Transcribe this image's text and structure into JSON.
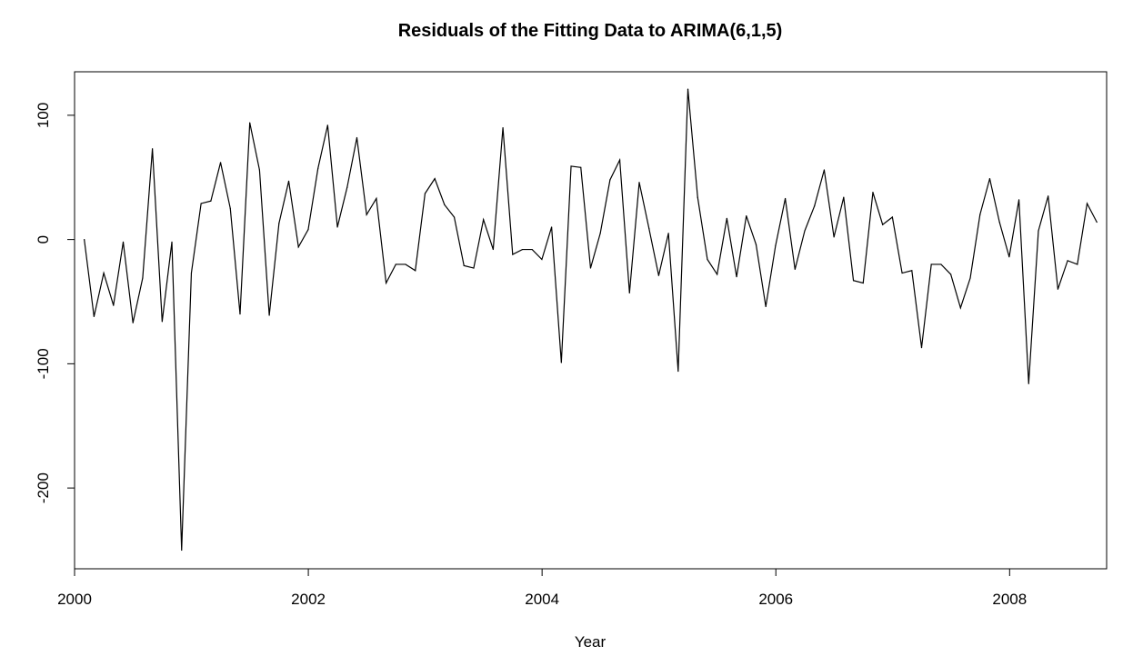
{
  "chart_data": {
    "type": "line",
    "title": "Residuals of the Fitting Data to ARIMA(6,1,5)",
    "xlabel": "Year",
    "ylabel": "",
    "xlim": [
      2000,
      2008.83
    ],
    "ylim": [
      -265,
      135
    ],
    "x_ticks": [
      2000,
      2002,
      2004,
      2006,
      2008
    ],
    "x_tick_labels": [
      "2000",
      "2002",
      "2004",
      "2006",
      "2008"
    ],
    "y_ticks": [
      100,
      0,
      -100,
      -200
    ],
    "y_tick_labels": [
      "100",
      "0",
      "-100",
      "-200"
    ],
    "grid": false,
    "legend": "none",
    "series_color": "#000000",
    "series": [
      {
        "x_start": 2000.083,
        "x_step": 0.0833,
        "values": [
          0,
          -62,
          -27,
          -53,
          -2,
          -67,
          -31,
          73,
          -66,
          -2,
          -250,
          -27,
          29,
          31,
          62,
          25,
          -60,
          94,
          56,
          -61,
          13,
          47,
          -6,
          8,
          57,
          92,
          10,
          42,
          82,
          20,
          33,
          -35,
          -20,
          -20,
          -25,
          37,
          49,
          28,
          18,
          -21,
          -23,
          16,
          -8,
          90,
          -12,
          -8,
          -8,
          -16,
          10,
          -99,
          59,
          58,
          -23,
          5,
          48,
          64,
          -43,
          46,
          9,
          -29,
          5,
          -106,
          121,
          34,
          -16,
          -28,
          17,
          -30,
          19,
          -4,
          -54,
          -5,
          33,
          -24,
          7,
          27,
          56,
          2,
          34,
          -33,
          -35,
          38,
          12,
          18,
          -27,
          -25,
          -87,
          -20,
          -20,
          -28,
          -55,
          -31,
          20,
          49,
          14,
          -14,
          32,
          -116,
          7,
          35,
          -40,
          -17,
          -20,
          29,
          14
        ]
      }
    ]
  }
}
